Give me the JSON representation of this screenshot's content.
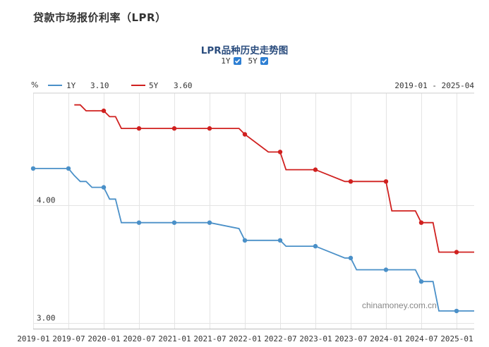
{
  "header": {
    "title": "贷款市场报价利率（LPR）"
  },
  "toggles": [
    {
      "label": "1Y",
      "checked": true
    },
    {
      "label": "5Y",
      "checked": true
    }
  ],
  "legend": [
    {
      "name": "1Y",
      "value": "3.10",
      "color": "#4a90c8"
    },
    {
      "name": "5Y",
      "value": "3.60",
      "color": "#d0201f"
    }
  ],
  "watermark": "chinamoney.com.cn",
  "chart_data": {
    "type": "line",
    "title": "LPR品种历史走势图",
    "unit_label": "%",
    "date_range": "2019-01 - 2025-04",
    "y_ticks": [
      {
        "value": 3.0,
        "label": "3.00"
      },
      {
        "value": 4.0,
        "label": "4.00"
      }
    ],
    "ylim": [
      2.95,
      4.95
    ],
    "xlim": [
      "2019-01",
      "2025-04"
    ],
    "x_ticks": [
      "2019-01",
      "2019-07",
      "2020-01",
      "2020-07",
      "2021-01",
      "2021-07",
      "2022-01",
      "2022-07",
      "2023-01",
      "2023-07",
      "2024-01",
      "2024-07",
      "2025-01"
    ],
    "grid": true,
    "series": [
      {
        "name": "1Y",
        "color": "#4a90c8",
        "points": [
          [
            "2019-01",
            4.31
          ],
          [
            "2019-07",
            4.31
          ],
          [
            "2019-08",
            4.25
          ],
          [
            "2019-09",
            4.2
          ],
          [
            "2019-10",
            4.2
          ],
          [
            "2019-11",
            4.15
          ],
          [
            "2019-12",
            4.15
          ],
          [
            "2020-01",
            4.15
          ],
          [
            "2020-02",
            4.05
          ],
          [
            "2020-03",
            4.05
          ],
          [
            "2020-04",
            3.85
          ],
          [
            "2020-05",
            3.85
          ],
          [
            "2020-07",
            3.85
          ],
          [
            "2021-01",
            3.85
          ],
          [
            "2021-07",
            3.85
          ],
          [
            "2021-12",
            3.8
          ],
          [
            "2022-01",
            3.7
          ],
          [
            "2022-07",
            3.7
          ],
          [
            "2022-08",
            3.65
          ],
          [
            "2023-01",
            3.65
          ],
          [
            "2023-06",
            3.55
          ],
          [
            "2023-07",
            3.55
          ],
          [
            "2023-08",
            3.45
          ],
          [
            "2024-01",
            3.45
          ],
          [
            "2024-06",
            3.45
          ],
          [
            "2024-07",
            3.35
          ],
          [
            "2024-09",
            3.35
          ],
          [
            "2024-10",
            3.1
          ],
          [
            "2025-01",
            3.1
          ],
          [
            "2025-04",
            3.1
          ]
        ],
        "markers": [
          "2019-01",
          "2019-07",
          "2020-01",
          "2020-07",
          "2021-01",
          "2021-07",
          "2022-01",
          "2022-07",
          "2023-01",
          "2023-07",
          "2024-01",
          "2024-07",
          "2025-01"
        ]
      },
      {
        "name": "5Y",
        "color": "#d0201f",
        "points": [
          [
            "2019-08",
            4.85
          ],
          [
            "2019-09",
            4.85
          ],
          [
            "2019-10",
            4.8
          ],
          [
            "2019-11",
            4.8
          ],
          [
            "2019-12",
            4.8
          ],
          [
            "2020-01",
            4.8
          ],
          [
            "2020-02",
            4.75
          ],
          [
            "2020-03",
            4.75
          ],
          [
            "2020-04",
            4.65
          ],
          [
            "2020-07",
            4.65
          ],
          [
            "2021-01",
            4.65
          ],
          [
            "2021-07",
            4.65
          ],
          [
            "2021-12",
            4.65
          ],
          [
            "2022-01",
            4.6
          ],
          [
            "2022-05",
            4.45
          ],
          [
            "2022-07",
            4.45
          ],
          [
            "2022-08",
            4.3
          ],
          [
            "2023-01",
            4.3
          ],
          [
            "2023-06",
            4.2
          ],
          [
            "2023-07",
            4.2
          ],
          [
            "2024-01",
            4.2
          ],
          [
            "2024-02",
            3.95
          ],
          [
            "2024-06",
            3.95
          ],
          [
            "2024-07",
            3.85
          ],
          [
            "2024-09",
            3.85
          ],
          [
            "2024-10",
            3.6
          ],
          [
            "2025-01",
            3.6
          ],
          [
            "2025-04",
            3.6
          ]
        ],
        "markers": [
          "2020-01",
          "2020-07",
          "2021-01",
          "2021-07",
          "2022-01",
          "2022-07",
          "2023-01",
          "2023-07",
          "2024-01",
          "2024-07",
          "2025-01"
        ]
      }
    ]
  }
}
